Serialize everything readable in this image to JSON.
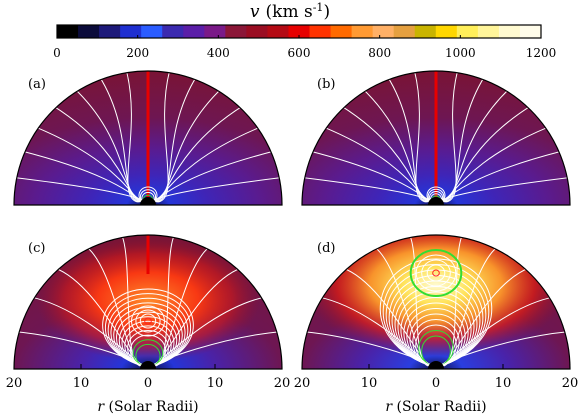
{
  "colorbar": {
    "title_symbol": "v",
    "title_units": "(km s",
    "title_exp": "-1",
    "title_close": ")",
    "ticks": [
      "0",
      "200",
      "400",
      "600",
      "800",
      "1000",
      "1200"
    ],
    "range": [
      0,
      1200
    ],
    "colors": [
      "#000000",
      "#0b0b3a",
      "#1d1a7a",
      "#1f2fd0",
      "#2a5cff",
      "#3b2ab0",
      "#5b1ea8",
      "#7a1a88",
      "#8b1738",
      "#9a0d22",
      "#b40a14",
      "#e60000",
      "#ff3300",
      "#ff6a00",
      "#ff9a33",
      "#ffb066",
      "#e5a040",
      "#c9b400",
      "#ffd700",
      "#ffef5a",
      "#fff59a",
      "#fffad0",
      "#fffcea"
    ]
  },
  "chart_data": [
    {
      "type": "heatmap",
      "panel_label": "(a)",
      "quantity": "v (km s^-1)",
      "xlim": [
        -20,
        20
      ],
      "background_speed": 440,
      "peak_speed": 450,
      "closed_loops": 5,
      "open_field_lines": 14,
      "shows_x_ticks": false
    },
    {
      "type": "heatmap",
      "panel_label": "(b)",
      "quantity": "v (km s^-1)",
      "xlim": [
        -20,
        20
      ],
      "background_speed": 440,
      "peak_speed": 450,
      "closed_loops": 6,
      "open_field_lines": 14,
      "shows_x_ticks": false
    },
    {
      "type": "heatmap",
      "panel_label": "(c)",
      "quantity": "v (km s^-1)",
      "xlim": [
        -20,
        20
      ],
      "xlabel_symbol": "r",
      "xlabel_text": " (Solar Radii)",
      "xticks": [
        "20",
        "10",
        "0",
        "10",
        "20"
      ],
      "background_speed": 450,
      "peak_speed": 700,
      "closed_loops": 13,
      "open_field_lines": 10,
      "shows_x_ticks": true
    },
    {
      "type": "heatmap",
      "panel_label": "(d)",
      "quantity": "v (km s^-1)",
      "xlim": [
        -20,
        20
      ],
      "xlabel_symbol": "r",
      "xlabel_text": " (Solar Radii)",
      "xticks": [
        "20",
        "10",
        "0",
        "10",
        "20"
      ],
      "background_speed": 450,
      "peak_speed": 1100,
      "closed_loops": 15,
      "open_field_lines": 10,
      "shows_x_ticks": true
    }
  ]
}
